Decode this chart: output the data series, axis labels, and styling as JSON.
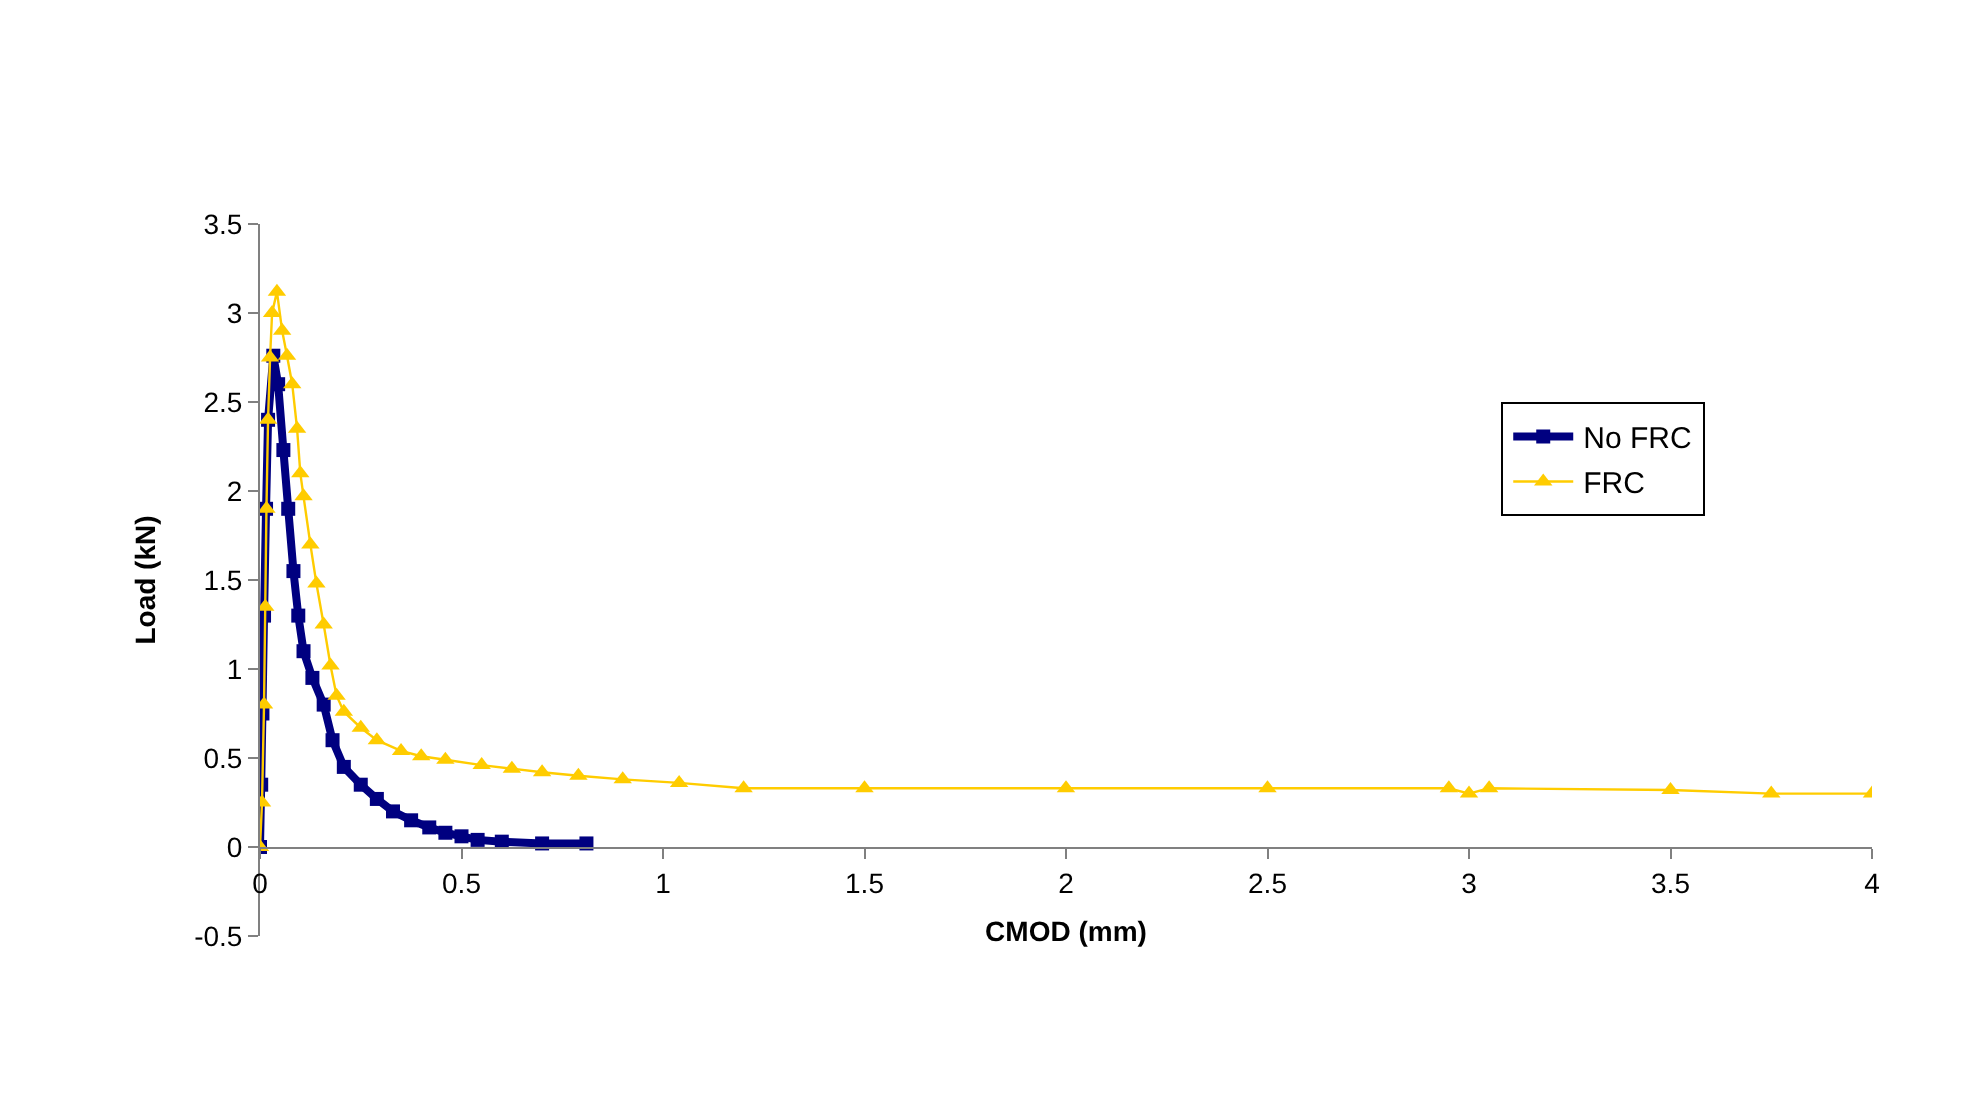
{
  "chart_data": {
    "type": "line",
    "xlabel": "CMOD (mm)",
    "ylabel": "Load (kN)",
    "xlim": [
      0,
      4
    ],
    "xticks": [
      0,
      0.5,
      1,
      1.5,
      2,
      2.5,
      3,
      3.5,
      4
    ],
    "ylim": [
      -0.5,
      3.5
    ],
    "yticks": [
      -0.5,
      0,
      0.5,
      1,
      1.5,
      2,
      2.5,
      3,
      3.5
    ],
    "legend": "right",
    "series": [
      {
        "name": "No FRC",
        "color": "#000080",
        "marker": "square",
        "line_style": "solid",
        "x": [
          0,
          0.003,
          0.006,
          0.01,
          0.015,
          0.02,
          0.033,
          0.045,
          0.058,
          0.07,
          0.083,
          0.095,
          0.108,
          0.13,
          0.158,
          0.18,
          0.208,
          0.25,
          0.29,
          0.33,
          0.375,
          0.42,
          0.46,
          0.5,
          0.54,
          0.6,
          0.7,
          0.81
        ],
        "values": [
          0,
          0.35,
          0.75,
          1.3,
          1.9,
          2.4,
          2.76,
          2.6,
          2.23,
          1.9,
          1.55,
          1.3,
          1.1,
          0.95,
          0.8,
          0.6,
          0.45,
          0.35,
          0.27,
          0.2,
          0.15,
          0.11,
          0.08,
          0.06,
          0.04,
          0.03,
          0.02,
          0.02
        ]
      },
      {
        "name": "FRC",
        "color": "#ffcc00",
        "marker": "triangle",
        "line_style": "solid",
        "x": [
          0,
          0.005,
          0.01,
          0.013,
          0.016,
          0.02,
          0.025,
          0.03,
          0.042,
          0.055,
          0.067,
          0.08,
          0.092,
          0.1,
          0.108,
          0.125,
          0.14,
          0.158,
          0.175,
          0.19,
          0.208,
          0.25,
          0.29,
          0.35,
          0.4,
          0.46,
          0.55,
          0.625,
          0.7,
          0.79,
          0.9,
          1.04,
          1.2,
          1.5,
          2,
          2.5,
          2.95,
          3.0,
          3.05,
          3.5,
          3.75,
          4.0
        ],
        "values": [
          0,
          0.25,
          0.8,
          1.35,
          1.9,
          2.4,
          2.75,
          3.0,
          3.12,
          2.9,
          2.76,
          2.6,
          2.35,
          2.1,
          1.97,
          1.7,
          1.48,
          1.25,
          1.02,
          0.85,
          0.76,
          0.67,
          0.6,
          0.54,
          0.51,
          0.49,
          0.46,
          0.44,
          0.42,
          0.4,
          0.38,
          0.36,
          0.33,
          0.33,
          0.33,
          0.33,
          0.33,
          0.3,
          0.33,
          0.32,
          0.3,
          0.3
        ]
      }
    ]
  }
}
